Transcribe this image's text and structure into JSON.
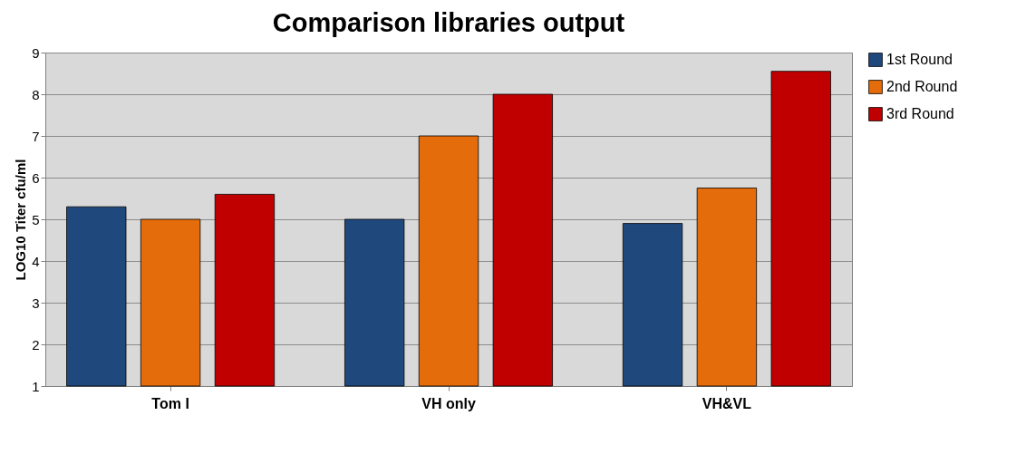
{
  "chart_data": {
    "type": "bar",
    "title": "Comparison libraries output",
    "ylabel": "LOG10 Titer cfu/ml",
    "categories": [
      "Tom I",
      "VH only",
      "VH&VL"
    ],
    "series": [
      {
        "name": "1st Round",
        "color": "#1f497d",
        "values": [
          5.3,
          5.0,
          4.9
        ]
      },
      {
        "name": "2nd Round",
        "color": "#e46c0a",
        "values": [
          5.0,
          7.0,
          5.75
        ]
      },
      {
        "name": "3rd Round",
        "color": "#c00000",
        "values": [
          5.6,
          8.0,
          8.55
        ]
      }
    ],
    "ylim": [
      1,
      9
    ],
    "yticks": [
      1,
      2,
      3,
      4,
      5,
      6,
      7,
      8,
      9
    ],
    "grid": "y",
    "legend": "right"
  }
}
